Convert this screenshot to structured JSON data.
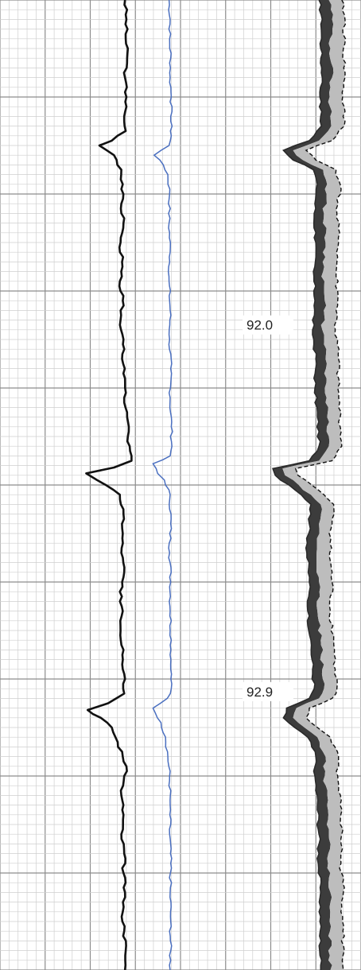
{
  "colors": {
    "background": "#ffffff",
    "grid_minor": "#cfcfcf",
    "grid_major": "#8c8c8c",
    "track1_curve": "#111111",
    "track2_curve": "#4a6fc0",
    "track3_dark_fill": "#3c3c3c",
    "track3_light_fill": "#bdbdbd",
    "track3_dashed": "#111111"
  },
  "chart_data": {
    "type": "line",
    "title": "",
    "grid": true,
    "legend": "none",
    "depth_markers": [
      {
        "label": "92.0",
        "depth_fraction": 0.335
      },
      {
        "label": "92.9",
        "depth_fraction": 0.713
      }
    ],
    "series": [
      {
        "track": 1,
        "values": [
          [
            0.0,
            0.73
          ],
          [
            0.02,
            0.75
          ],
          [
            0.04,
            0.74
          ],
          [
            0.06,
            0.76
          ],
          [
            0.08,
            0.73
          ],
          [
            0.1,
            0.75
          ],
          [
            0.12,
            0.72
          ],
          [
            0.135,
            0.74
          ],
          [
            0.145,
            0.55
          ],
          [
            0.15,
            0.38
          ],
          [
            0.16,
            0.58
          ],
          [
            0.175,
            0.68
          ],
          [
            0.19,
            0.7
          ],
          [
            0.21,
            0.68
          ],
          [
            0.23,
            0.71
          ],
          [
            0.25,
            0.67
          ],
          [
            0.27,
            0.69
          ],
          [
            0.29,
            0.66
          ],
          [
            0.31,
            0.7
          ],
          [
            0.33,
            0.67
          ],
          [
            0.35,
            0.71
          ],
          [
            0.37,
            0.69
          ],
          [
            0.39,
            0.73
          ],
          [
            0.41,
            0.72
          ],
          [
            0.43,
            0.76
          ],
          [
            0.45,
            0.77
          ],
          [
            0.465,
            0.8
          ],
          [
            0.475,
            0.82
          ],
          [
            0.482,
            0.58
          ],
          [
            0.488,
            0.2
          ],
          [
            0.495,
            0.35
          ],
          [
            0.51,
            0.66
          ],
          [
            0.53,
            0.71
          ],
          [
            0.55,
            0.7
          ],
          [
            0.57,
            0.68
          ],
          [
            0.59,
            0.72
          ],
          [
            0.61,
            0.66
          ],
          [
            0.63,
            0.7
          ],
          [
            0.65,
            0.67
          ],
          [
            0.67,
            0.71
          ],
          [
            0.69,
            0.7
          ],
          [
            0.7,
            0.73
          ],
          [
            0.715,
            0.72
          ],
          [
            0.725,
            0.5
          ],
          [
            0.732,
            0.22
          ],
          [
            0.74,
            0.4
          ],
          [
            0.75,
            0.55
          ],
          [
            0.765,
            0.63
          ],
          [
            0.78,
            0.7
          ],
          [
            0.79,
            0.75
          ],
          [
            0.8,
            0.72
          ],
          [
            0.82,
            0.68
          ],
          [
            0.84,
            0.71
          ],
          [
            0.86,
            0.68
          ],
          [
            0.88,
            0.72
          ],
          [
            0.9,
            0.71
          ],
          [
            0.92,
            0.73
          ],
          [
            0.94,
            0.7
          ],
          [
            0.96,
            0.72
          ],
          [
            0.98,
            0.74
          ],
          [
            1.0,
            0.73
          ]
        ]
      },
      {
        "track": 2,
        "values": [
          [
            0.0,
            0.48
          ],
          [
            0.02,
            0.5
          ],
          [
            0.04,
            0.49
          ],
          [
            0.06,
            0.51
          ],
          [
            0.08,
            0.5
          ],
          [
            0.1,
            0.52
          ],
          [
            0.12,
            0.51
          ],
          [
            0.14,
            0.52
          ],
          [
            0.15,
            0.48
          ],
          [
            0.16,
            0.22
          ],
          [
            0.17,
            0.38
          ],
          [
            0.18,
            0.46
          ],
          [
            0.2,
            0.49
          ],
          [
            0.23,
            0.48
          ],
          [
            0.26,
            0.5
          ],
          [
            0.29,
            0.48
          ],
          [
            0.32,
            0.5
          ],
          [
            0.35,
            0.49
          ],
          [
            0.38,
            0.51
          ],
          [
            0.41,
            0.5
          ],
          [
            0.44,
            0.52
          ],
          [
            0.46,
            0.53
          ],
          [
            0.47,
            0.5
          ],
          [
            0.478,
            0.2
          ],
          [
            0.488,
            0.28
          ],
          [
            0.495,
            0.4
          ],
          [
            0.51,
            0.5
          ],
          [
            0.54,
            0.51
          ],
          [
            0.57,
            0.49
          ],
          [
            0.6,
            0.51
          ],
          [
            0.63,
            0.5
          ],
          [
            0.66,
            0.52
          ],
          [
            0.69,
            0.51
          ],
          [
            0.71,
            0.52
          ],
          [
            0.72,
            0.45
          ],
          [
            0.73,
            0.2
          ],
          [
            0.745,
            0.34
          ],
          [
            0.76,
            0.42
          ],
          [
            0.78,
            0.46
          ],
          [
            0.8,
            0.49
          ],
          [
            0.83,
            0.5
          ],
          [
            0.86,
            0.49
          ],
          [
            0.89,
            0.51
          ],
          [
            0.92,
            0.5
          ],
          [
            0.95,
            0.51
          ],
          [
            1.0,
            0.5
          ]
        ]
      },
      {
        "track": 3,
        "values": [
          [
            0.0,
            0.62
          ],
          [
            0.02,
            0.66
          ],
          [
            0.05,
            0.64
          ],
          [
            0.08,
            0.66
          ],
          [
            0.1,
            0.63
          ],
          [
            0.13,
            0.65
          ],
          [
            0.145,
            0.5
          ],
          [
            0.155,
            0.18
          ],
          [
            0.165,
            0.3
          ],
          [
            0.175,
            0.55
          ],
          [
            0.19,
            0.6
          ],
          [
            0.22,
            0.56
          ],
          [
            0.25,
            0.58
          ],
          [
            0.28,
            0.55
          ],
          [
            0.31,
            0.57
          ],
          [
            0.34,
            0.54
          ],
          [
            0.37,
            0.58
          ],
          [
            0.4,
            0.57
          ],
          [
            0.43,
            0.6
          ],
          [
            0.46,
            0.62
          ],
          [
            0.475,
            0.5
          ],
          [
            0.483,
            0.05
          ],
          [
            0.49,
            0.08
          ],
          [
            0.5,
            0.25
          ],
          [
            0.51,
            0.4
          ],
          [
            0.52,
            0.52
          ],
          [
            0.54,
            0.5
          ],
          [
            0.57,
            0.47
          ],
          [
            0.6,
            0.5
          ],
          [
            0.63,
            0.48
          ],
          [
            0.66,
            0.52
          ],
          [
            0.69,
            0.54
          ],
          [
            0.71,
            0.56
          ],
          [
            0.72,
            0.5
          ],
          [
            0.73,
            0.22
          ],
          [
            0.74,
            0.18
          ],
          [
            0.75,
            0.32
          ],
          [
            0.76,
            0.48
          ],
          [
            0.78,
            0.58
          ],
          [
            0.8,
            0.57
          ],
          [
            0.83,
            0.6
          ],
          [
            0.86,
            0.62
          ],
          [
            0.89,
            0.61
          ],
          [
            0.92,
            0.64
          ],
          [
            0.95,
            0.63
          ],
          [
            1.0,
            0.64
          ]
        ]
      }
    ]
  }
}
